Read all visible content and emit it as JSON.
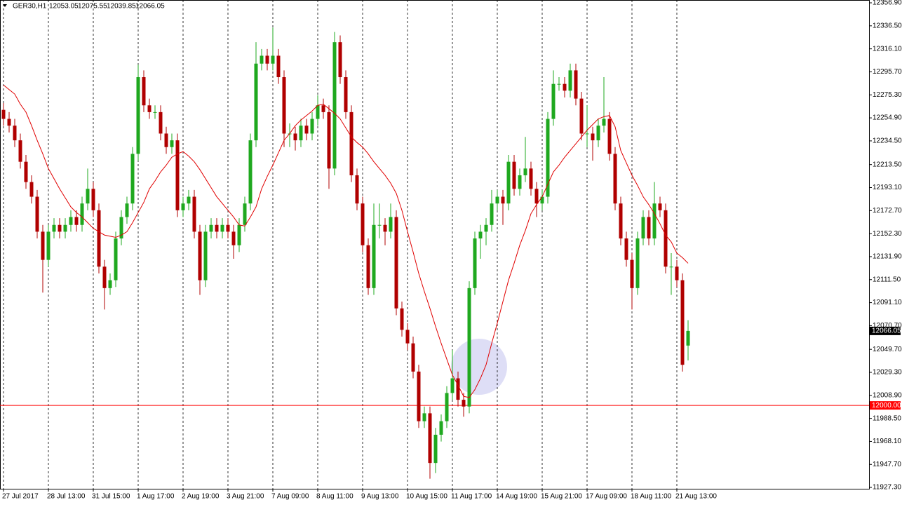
{
  "chart_data": {
    "type": "candlestick",
    "symbol": "GER30,H1",
    "ohlc_info": [
      12053.05,
      12075.55,
      12039.85,
      12066.05
    ],
    "up_color": "#1fa81f",
    "down_color": "#b00000",
    "ylim": [
      11926.1,
      12359.4
    ],
    "yticks": [
      {
        "value": 12356.9,
        "label": "12356.90"
      },
      {
        "value": 12336.5,
        "label": "12336.50"
      },
      {
        "value": 12316.1,
        "label": "12316.10"
      },
      {
        "value": 12295.7,
        "label": "12295.70"
      },
      {
        "value": 12275.3,
        "label": "12275.30"
      },
      {
        "value": 12254.9,
        "label": "12254.90"
      },
      {
        "value": 12234.5,
        "label": "12234.50"
      },
      {
        "value": 12213.5,
        "label": "12213.50"
      },
      {
        "value": 12193.1,
        "label": "12193.10"
      },
      {
        "value": 12172.7,
        "label": "12172.70"
      },
      {
        "value": 12152.3,
        "label": "12152.30"
      },
      {
        "value": 12131.9,
        "label": "12131.90"
      },
      {
        "value": 12111.5,
        "label": "12111.50"
      },
      {
        "value": 12091.1,
        "label": "12091.10"
      },
      {
        "value": 12070.7,
        "label": "12070.70"
      },
      {
        "value": 12049.7,
        "label": "12049.70"
      },
      {
        "value": 12029.3,
        "label": "12029.30"
      },
      {
        "value": 12008.9,
        "label": "12008.90"
      },
      {
        "value": 11988.5,
        "label": "11988.50"
      },
      {
        "value": 11968.1,
        "label": "11968.10"
      },
      {
        "value": 11947.7,
        "label": "11947.70"
      },
      {
        "value": 11927.3,
        "label": "11927.30"
      }
    ],
    "categories": [
      "27 Jul 2017",
      null,
      null,
      null,
      null,
      null,
      null,
      null,
      "28 Jul 13:00",
      null,
      null,
      null,
      null,
      null,
      null,
      null,
      "31 Jul 15:00",
      null,
      null,
      null,
      null,
      null,
      null,
      null,
      "1 Aug 17:00",
      null,
      null,
      null,
      null,
      null,
      null,
      null,
      "2 Aug 19:00",
      null,
      null,
      null,
      null,
      null,
      null,
      null,
      "3 Aug 21:00",
      null,
      null,
      null,
      null,
      null,
      null,
      null,
      "7 Aug 09:00",
      null,
      null,
      null,
      null,
      null,
      null,
      null,
      "8 Aug 11:00",
      null,
      null,
      null,
      null,
      null,
      null,
      null,
      "9 Aug 13:00",
      null,
      null,
      null,
      null,
      null,
      null,
      null,
      "10 Aug 15:00",
      null,
      null,
      null,
      null,
      null,
      null,
      null,
      "11 Aug 17:00",
      null,
      null,
      null,
      null,
      null,
      null,
      null,
      "14 Aug 19:00",
      null,
      null,
      null,
      null,
      null,
      null,
      null,
      "15 Aug 21:00",
      null,
      null,
      null,
      null,
      null,
      null,
      null,
      "17 Aug 09:00",
      null,
      null,
      null,
      null,
      null,
      null,
      null,
      "18 Aug 11:00",
      null,
      null,
      null,
      null,
      null,
      null,
      null,
      "21 Aug 13:00",
      null,
      null
    ],
    "open": [
      12262,
      12254,
      12248,
      12235,
      12216,
      12198,
      12185,
      12154,
      12129,
      12154,
      12160,
      12154,
      12160,
      12167,
      12160,
      12179,
      12192,
      12173,
      12123,
      12104,
      12111,
      12148,
      12167,
      12179,
      12223,
      12291,
      12266,
      12260,
      12260,
      12241,
      12229,
      12235,
      12173,
      12179,
      12185,
      12154,
      12111,
      12154,
      12160,
      12154,
      12160,
      12154,
      12142,
      12160,
      12179,
      12235,
      12303,
      12310,
      12303,
      12310,
      12291,
      12241,
      12241,
      12235,
      12248,
      12241,
      12254,
      12266,
      12260,
      12210,
      12322,
      12291,
      12260,
      12204,
      12179,
      12142,
      12104,
      12160,
      12160,
      12154,
      12167,
      12086,
      12067,
      12055,
      12030,
      11986,
      11993,
      11949,
      11974,
      11986,
      12011,
      12024,
      12005,
      11999,
      12104,
      12148,
      12154,
      12160,
      12179,
      12185,
      12179,
      12216,
      12192,
      12204,
      12210,
      12192,
      12179,
      12185,
      12254,
      12285,
      12285,
      12279,
      12297,
      12272,
      12241,
      12241,
      12235,
      12248,
      12254,
      12223,
      12179,
      12148,
      12129,
      12104,
      12148,
      12167,
      12148,
      12179,
      12173,
      12123,
      12123,
      12111,
      12053.05
    ],
    "high": [
      12268,
      12260,
      12254,
      12241,
      12222,
      12204,
      12191,
      12160,
      12160,
      12166,
      12166,
      12166,
      12173,
      12173,
      12185,
      12210,
      12198,
      12179,
      12129,
      12117,
      12154,
      12173,
      12185,
      12229,
      12302,
      12297,
      12272,
      12266,
      12266,
      12247,
      12241,
      12241,
      12185,
      12191,
      12191,
      12160,
      12160,
      12166,
      12166,
      12166,
      12166,
      12160,
      12166,
      12185,
      12241,
      12322,
      12316,
      12316,
      12335,
      12316,
      12297,
      12250,
      12247,
      12254,
      12254,
      12260,
      12275,
      12272,
      12266,
      12331,
      12328,
      12297,
      12266,
      12210,
      12185,
      12148,
      12179,
      12179,
      12166,
      12179,
      12173,
      12092,
      12073,
      12061,
      12036,
      11999,
      11999,
      11980,
      11992,
      12017,
      12049,
      12030,
      12011,
      12110,
      12154,
      12160,
      12166,
      12191,
      12191,
      12191,
      12222,
      12222,
      12210,
      12238,
      12216,
      12198,
      12191,
      12260,
      12297,
      12291,
      12291,
      12303,
      12303,
      12278,
      12266,
      12247,
      12254,
      12291,
      12260,
      12229,
      12185,
      12154,
      12135,
      12154,
      12173,
      12173,
      12198,
      12185,
      12179,
      12135,
      12129,
      12117,
      12075.55
    ],
    "low": [
      12248,
      12242,
      12229,
      12210,
      12192,
      12179,
      12148,
      12100,
      12123,
      12148,
      12148,
      12148,
      12154,
      12154,
      12154,
      12173,
      12167,
      12117,
      12085,
      12098,
      12105,
      12142,
      12161,
      12173,
      12217,
      12260,
      12254,
      12254,
      12235,
      12223,
      12223,
      12167,
      12167,
      12173,
      12148,
      12098,
      12105,
      12148,
      12148,
      12148,
      12148,
      12130,
      12136,
      12154,
      12173,
      12229,
      12297,
      12297,
      12297,
      12285,
      12229,
      12229,
      12226,
      12229,
      12235,
      12235,
      12248,
      12254,
      12192,
      12204,
      12285,
      12254,
      12198,
      12173,
      12136,
      12098,
      12098,
      12148,
      12142,
      12148,
      12080,
      12061,
      12049,
      12024,
      11980,
      11980,
      11935,
      11940,
      11968,
      11980,
      12005,
      11999,
      11990,
      11993,
      12098,
      12130,
      12142,
      12154,
      12173,
      12160,
      12173,
      12186,
      12186,
      12198,
      12186,
      12167,
      12173,
      12179,
      12248,
      12279,
      12273,
      12273,
      12266,
      12235,
      12229,
      12217,
      12229,
      12242,
      12217,
      12173,
      12142,
      12123,
      12085,
      12098,
      12142,
      12142,
      12142,
      12167,
      12117,
      12098,
      12105,
      12030,
      12039.85
    ],
    "close": [
      12254,
      12248,
      12235,
      12216,
      12198,
      12185,
      12154,
      12129,
      12154,
      12160,
      12154,
      12160,
      12167,
      12160,
      12179,
      12192,
      12173,
      12123,
      12104,
      12111,
      12148,
      12167,
      12179,
      12223,
      12291,
      12266,
      12260,
      12260,
      12241,
      12229,
      12235,
      12173,
      12179,
      12185,
      12154,
      12111,
      12154,
      12160,
      12154,
      12160,
      12154,
      12142,
      12160,
      12179,
      12235,
      12303,
      12310,
      12303,
      12310,
      12291,
      12241,
      12241,
      12235,
      12248,
      12241,
      12254,
      12266,
      12260,
      12210,
      12322,
      12291,
      12260,
      12204,
      12179,
      12142,
      12104,
      12160,
      12160,
      12154,
      12167,
      12086,
      12067,
      12055,
      12030,
      11986,
      11993,
      11949,
      11974,
      11986,
      12011,
      12024,
      12005,
      11999,
      12104,
      12148,
      12154,
      12160,
      12179,
      12185,
      12179,
      12216,
      12192,
      12204,
      12210,
      12192,
      12179,
      12185,
      12254,
      12285,
      12285,
      12279,
      12297,
      12272,
      12241,
      12241,
      12235,
      12248,
      12254,
      12223,
      12179,
      12148,
      12129,
      12104,
      12148,
      12167,
      12148,
      12179,
      12173,
      12123,
      12123,
      12111,
      12036,
      12066.05
    ],
    "ma": {
      "color": "#e00000",
      "values": [
        12284,
        12280,
        12276,
        12267,
        12260,
        12248,
        12235,
        12223,
        12210,
        12201,
        12192,
        12184,
        12176,
        12171,
        12167,
        12162,
        12157,
        12154,
        12151,
        12150,
        12149,
        12151,
        12154,
        12162,
        12171,
        12180,
        12192,
        12199,
        12207,
        12213,
        12220,
        12223,
        12225,
        12221,
        12216,
        12209,
        12201,
        12193,
        12185,
        12179,
        12173,
        12167,
        12160,
        12159,
        12167,
        12176,
        12192,
        12203,
        12213,
        12224,
        12235,
        12241,
        12248,
        12253,
        12257,
        12261,
        12266,
        12267,
        12263,
        12259,
        12254,
        12246,
        12238,
        12233,
        12229,
        12223,
        12216,
        12210,
        12204,
        12197,
        12188,
        12173,
        12154,
        12136,
        12117,
        12101,
        12086,
        12070,
        12055,
        12041,
        12027,
        12018,
        12008,
        12007,
        12014,
        12024,
        12036,
        12055,
        12073,
        12092,
        12111,
        12126,
        12142,
        12155,
        12170,
        12178,
        12185,
        12196,
        12207,
        12213,
        12220,
        12226,
        12232,
        12238,
        12244,
        12249,
        12254,
        12256,
        12257,
        12247,
        12226,
        12215,
        12204,
        12195,
        12185,
        12178,
        12170,
        12161,
        12151,
        12145,
        12135,
        12131,
        12126
      ]
    },
    "current_price": 12066.05,
    "hline": {
      "value": 12000,
      "label": "12000.00",
      "color": "#ff0000"
    }
  }
}
